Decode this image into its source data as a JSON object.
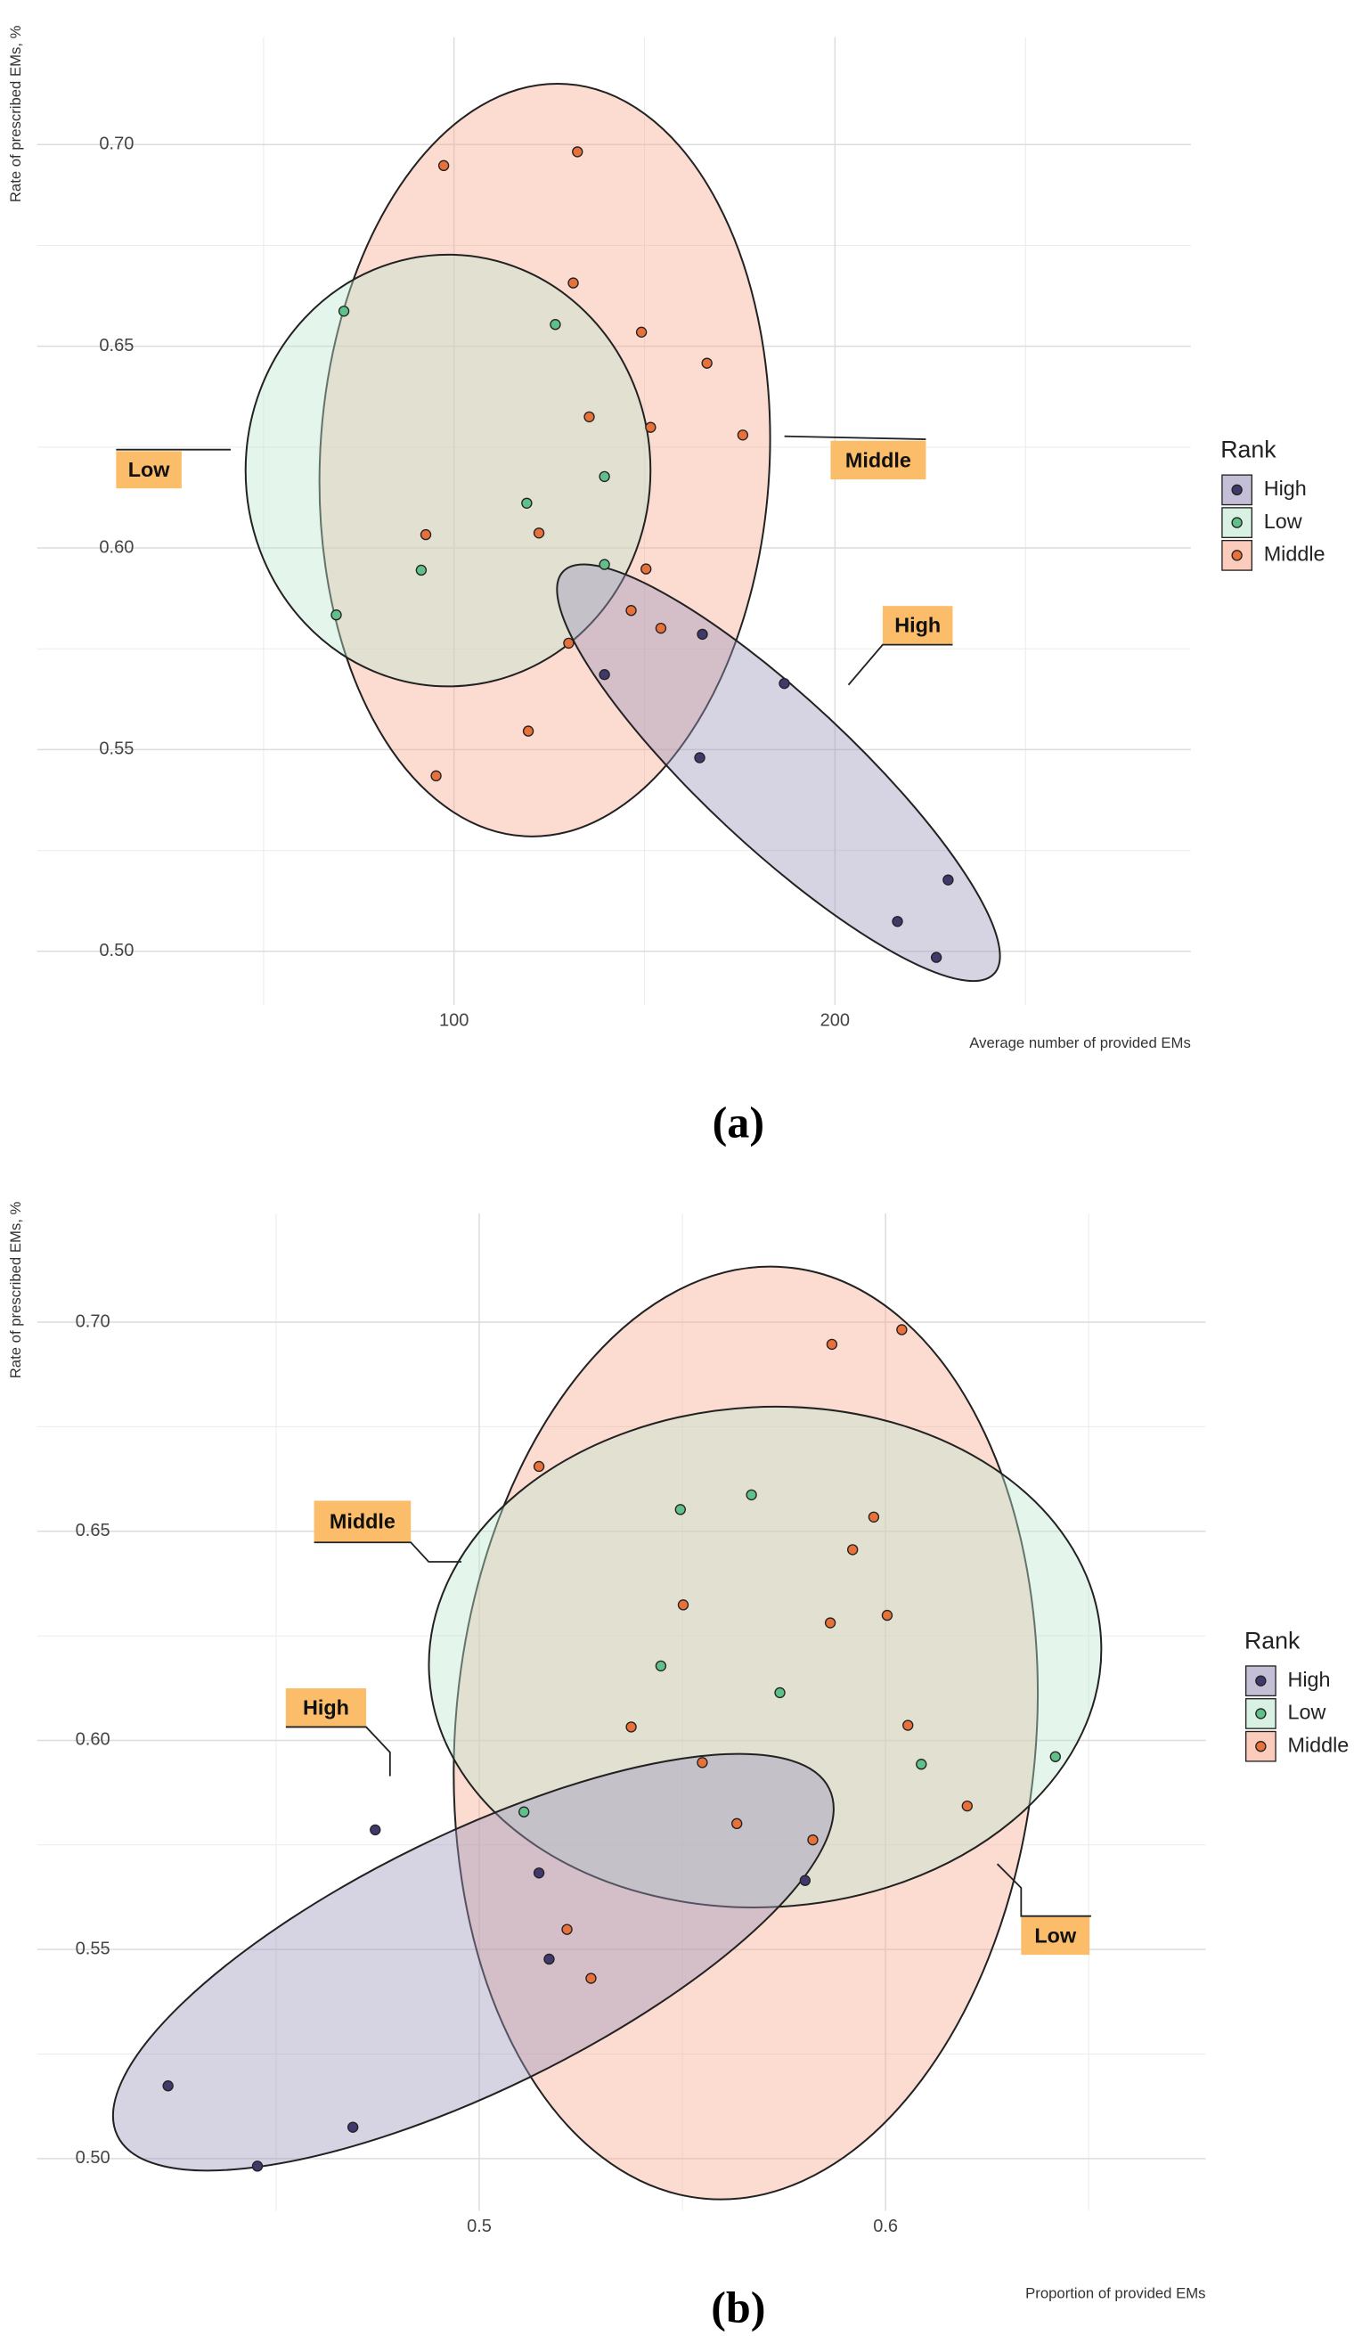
{
  "chart_data": [
    {
      "type": "scatter",
      "title": "(a)",
      "x_label": "Average number of provided EMs",
      "y_label": "Rate of prescribed EMs, %",
      "xlim": [
        -9.4,
        293.4
      ],
      "ylim": [
        0.4867,
        0.7266
      ],
      "xticks": [
        100,
        200
      ],
      "xgrid_minor": [
        50,
        150,
        250
      ],
      "yticks": [
        {
          "value": 0.5,
          "label": "0.50"
        },
        {
          "value": 0.55,
          "label": "0.55"
        },
        {
          "value": 0.6,
          "label": "0.60"
        },
        {
          "value": 0.65,
          "label": "0.65"
        },
        {
          "value": 0.7,
          "label": "0.70"
        }
      ],
      "ygrid_minor": [
        0.525,
        0.575,
        0.625,
        0.675
      ],
      "grid": true,
      "legend_title": "Rank",
      "legend": "right",
      "series": [
        {
          "name": "High",
          "color": "#3f3a6b",
          "fill": "#9d95bd",
          "x": [
            139.5,
            165.2,
            186.7,
            164.5,
            216.4,
            229.7,
            226.6
          ],
          "y": [
            0.5686,
            0.5786,
            0.5664,
            0.548,
            0.5074,
            0.5177,
            0.4985
          ]
        },
        {
          "name": "Low",
          "color": "#5fc08a",
          "fill": "#bfe8cf",
          "x": [
            71.1,
            126.6,
            139.5,
            119.1,
            91.4,
            139.5,
            69.1
          ],
          "y": [
            0.6587,
            0.6554,
            0.6177,
            0.6111,
            0.5945,
            0.5959,
            0.5834
          ]
        },
        {
          "name": "Middle",
          "color": "#e8703a",
          "fill": "#f8a98e",
          "x": [
            97.3,
            132.4,
            131.3,
            149.2,
            166.4,
            135.5,
            151.6,
            175.8,
            92.6,
            122.3,
            150.4,
            146.5,
            154.3,
            130.1,
            119.5,
            95.3
          ],
          "y": [
            0.6948,
            0.6982,
            0.6657,
            0.6535,
            0.6458,
            0.6325,
            0.6299,
            0.628,
            0.6033,
            0.6037,
            0.5948,
            0.5845,
            0.5801,
            0.5764,
            0.5546,
            0.5435
          ]
        }
      ],
      "annotations": [
        "Low",
        "Middle",
        "High"
      ]
    },
    {
      "type": "scatter",
      "title": "(b)",
      "x_label": "Proportion of provided EMs",
      "y_label": "Rate of prescribed EMs, %",
      "xlim": [
        0.3912,
        0.6788
      ],
      "ylim": [
        0.4875,
        0.726
      ],
      "xticks": [
        {
          "value": 0.5,
          "label": "0.5"
        },
        {
          "value": 0.6,
          "label": "0.6"
        }
      ],
      "xgrid_minor": [
        0.45,
        0.55,
        0.65
      ],
      "yticks": [
        {
          "value": 0.5,
          "label": "0.50"
        },
        {
          "value": 0.55,
          "label": "0.55"
        },
        {
          "value": 0.6,
          "label": "0.60"
        },
        {
          "value": 0.65,
          "label": "0.65"
        },
        {
          "value": 0.7,
          "label": "0.70"
        }
      ],
      "ygrid_minor": [
        0.525,
        0.575,
        0.625,
        0.675
      ],
      "grid": true,
      "legend_title": "Rank",
      "legend": "right",
      "series": [
        {
          "name": "High",
          "color": "#3f3a6b",
          "fill": "#9d95bd",
          "x": [
            0.4744,
            0.5147,
            0.5802,
            0.5172,
            0.4689,
            0.4234,
            0.4454
          ],
          "y": [
            0.5786,
            0.5683,
            0.5665,
            0.5477,
            0.5075,
            0.5174,
            0.4982
          ]
        },
        {
          "name": "Low",
          "color": "#5fc08a",
          "fill": "#bfe8cf",
          "x": [
            0.567,
            0.5495,
            0.5447,
            0.574,
            0.6088,
            0.6418,
            0.511
          ],
          "y": [
            0.6587,
            0.6552,
            0.6178,
            0.6114,
            0.5943,
            0.5961,
            0.5829
          ]
        },
        {
          "name": "Middle",
          "color": "#e8703a",
          "fill": "#f8a98e",
          "x": [
            0.5868,
            0.604,
            0.5147,
            0.5971,
            0.5919,
            0.5502,
            0.6004,
            0.5864,
            0.5374,
            0.6055,
            0.5549,
            0.6201,
            0.5634,
            0.5821,
            0.5216,
            0.5275
          ],
          "y": [
            0.6947,
            0.6982,
            0.6655,
            0.6534,
            0.6456,
            0.6324,
            0.6299,
            0.6281,
            0.6032,
            0.6036,
            0.5947,
            0.5843,
            0.5801,
            0.5762,
            0.5548,
            0.5431
          ]
        }
      ],
      "annotations": [
        "Middle",
        "High",
        "Low"
      ]
    }
  ]
}
